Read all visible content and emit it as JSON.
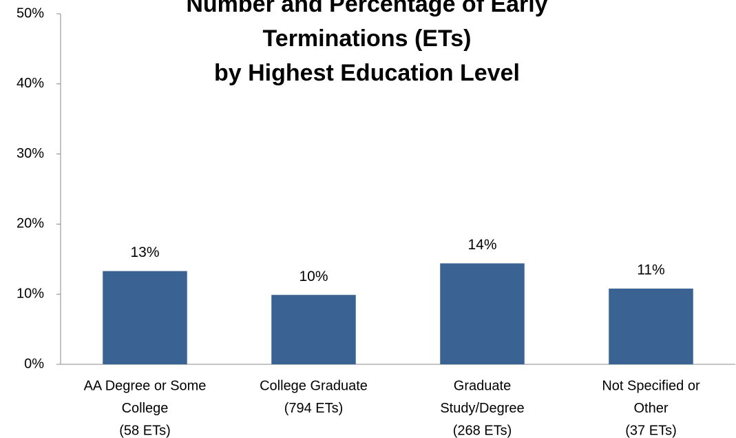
{
  "chart_data": {
    "type": "bar",
    "title": [
      "Number and Percentage of Early",
      "Terminations (ETs)",
      "by Highest Education Level"
    ],
    "categories": [
      [
        "AA Degree or Some",
        "College",
        "(58 ETs)"
      ],
      [
        "College Graduate",
        "(794 ETs)"
      ],
      [
        "Graduate",
        "Study/Degree",
        "(268 ETs)"
      ],
      [
        "Not Specified or",
        "Other",
        "(37 ETs)"
      ]
    ],
    "values": [
      13.3,
      9.9,
      14.4,
      10.8
    ],
    "value_labels": [
      "13%",
      "10%",
      "14%",
      "11%"
    ],
    "color": "#3a6293",
    "ylim": [
      0,
      50
    ],
    "yticks": [
      {
        "value": 0,
        "label": "0%"
      },
      {
        "value": 10,
        "label": "10%"
      },
      {
        "value": 20,
        "label": "20%"
      },
      {
        "value": 30,
        "label": "30%"
      },
      {
        "value": 40,
        "label": "40%"
      },
      {
        "value": 50,
        "label": "50%"
      }
    ],
    "grid": false
  }
}
